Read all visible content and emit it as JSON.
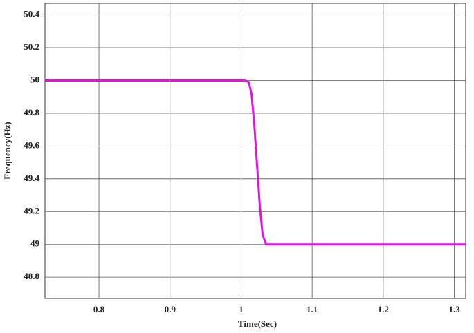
{
  "chart_data": {
    "type": "line",
    "x_label": "Time(Sec)",
    "y_label": "Frequency(Hz)",
    "x": [
      0.724,
      1.0,
      1.005,
      1.0107,
      1.0147,
      1.0186,
      1.0225,
      1.0264,
      1.0303,
      1.0352,
      1.316
    ],
    "series": [
      {
        "color": "#e014e0",
        "values": [
          50,
          50,
          50.0,
          49.99,
          49.92,
          49.73,
          49.48,
          49.23,
          49.06,
          49.0,
          49
        ]
      }
    ],
    "xlim": [
      0.724,
      1.316
    ],
    "xticks": [
      0.8,
      0.9,
      1,
      1.1,
      1.2,
      1.3
    ],
    "ylim": [
      48.67,
      50.47
    ],
    "yticks": [
      48.8,
      49,
      49.2,
      49.4,
      49.6,
      49.8,
      50,
      50.2,
      50.4
    ],
    "grid": true
  }
}
